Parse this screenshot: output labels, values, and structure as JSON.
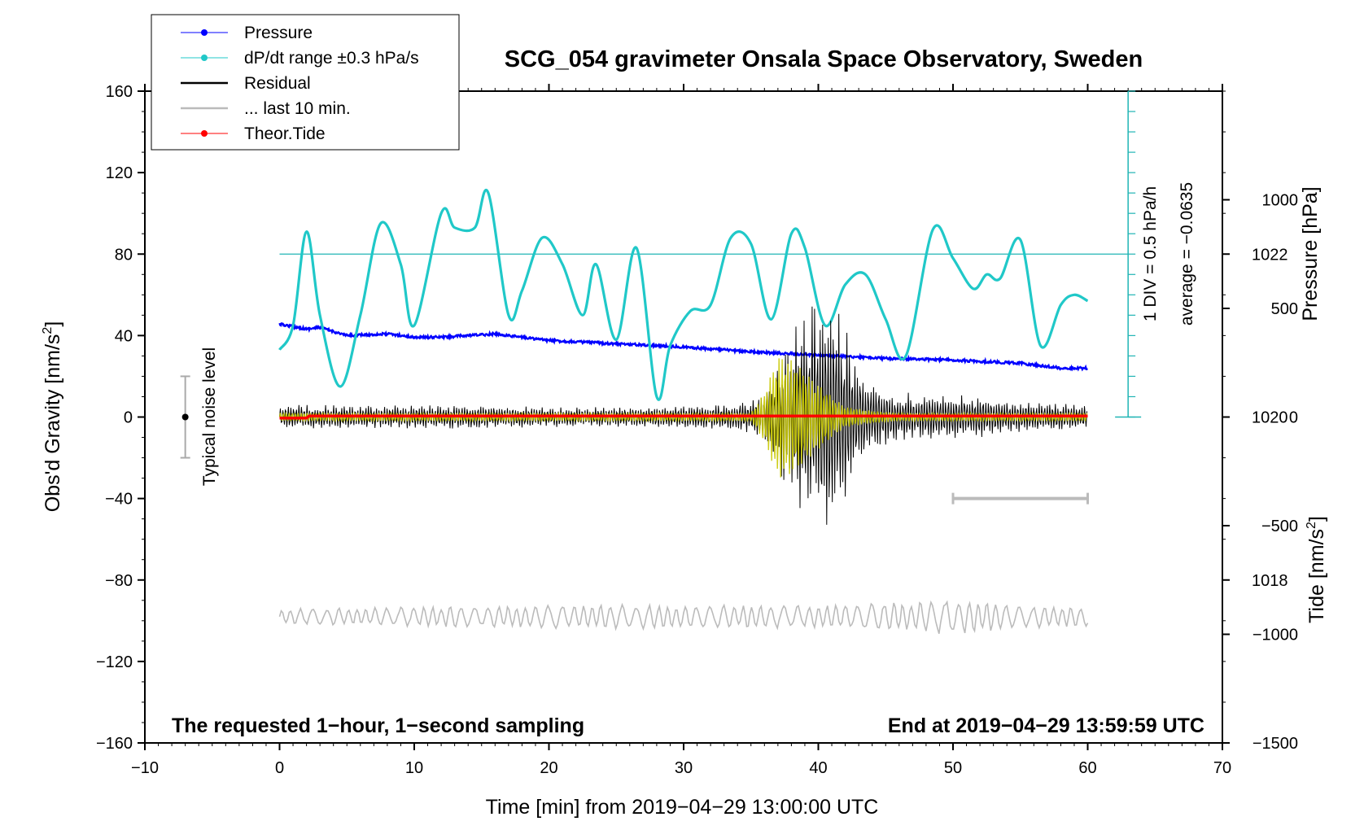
{
  "chart_data": {
    "type": "line",
    "title": "SCG_054 gravimeter Onsala Space Observatory, Sweden",
    "xlabel": "Time [min] from 2019−04−29 13:00:00 UTC",
    "xlim": [
      -10,
      70
    ],
    "x_ticks": [
      "−10",
      "0",
      "10",
      "20",
      "30",
      "40",
      "50",
      "60",
      "70"
    ],
    "left_axis": {
      "label_prefix": "Obs'd Gravity [nm/s",
      "label_sup": "2",
      "label_suffix": "]",
      "ylim": [
        -160,
        160
      ],
      "ticks": [
        "160",
        "120",
        "80",
        "40",
        "0",
        "−40",
        "−80",
        "−120",
        "−160"
      ]
    },
    "pressure_axis": {
      "label": "Pressure [hPa]",
      "ylim": [
        1016,
        1024
      ],
      "ticks": [
        "1022",
        "1020",
        "1018"
      ]
    },
    "tide_axis": {
      "label_prefix": "Tide [nm/s",
      "label_sup": "2",
      "label_suffix": "]",
      "ylim": [
        -1500,
        1500
      ],
      "ticks": [
        "1000",
        "500",
        "0",
        "−500",
        "−1000",
        "−1500"
      ]
    },
    "legend": [
      {
        "label": "Pressure",
        "color": "#0000ff",
        "marker": true
      },
      {
        "label": "dP/dt range ±0.3 hPa/s",
        "color": "#00c8c8",
        "marker": true
      },
      {
        "label": "Residual",
        "color": "#000000",
        "marker": false
      },
      {
        "label": "... last 10 min.",
        "color": "#bbbbbb",
        "marker": false
      },
      {
        "label": "Theor.Tide",
        "color": "#ff0000",
        "marker": true
      }
    ],
    "series": [
      {
        "name": "Pressure",
        "axis": "pressure",
        "color": "#0000ff",
        "x": [
          0,
          2,
          3,
          5,
          8,
          10,
          12,
          14,
          16,
          18,
          20,
          25,
          30,
          35,
          40,
          45,
          50,
          55,
          58,
          60
        ],
        "y": [
          1021.14,
          1021.08,
          1021.1,
          1021.0,
          1021.02,
          1020.98,
          1020.98,
          1021.0,
          1021.02,
          1020.98,
          1020.94,
          1020.9,
          1020.86,
          1020.8,
          1020.76,
          1020.72,
          1020.7,
          1020.66,
          1020.6,
          1020.6
        ]
      },
      {
        "name": "dP/dt",
        "axis": "left",
        "color": "#20c8c8",
        "x": [
          0,
          1,
          2,
          3,
          4.5,
          6,
          7.5,
          9,
          10,
          12,
          13,
          14.5,
          15.5,
          17,
          18,
          19.5,
          21,
          22.5,
          23.5,
          25,
          26.5,
          28,
          29,
          30.5,
          32,
          33.5,
          35,
          36.5,
          38,
          39,
          40.5,
          42,
          43.5,
          45,
          46.5,
          48.5,
          50,
          51.5,
          52.5,
          53.5,
          55,
          56.5,
          58,
          59,
          60
        ],
        "y": [
          33,
          45,
          91,
          50,
          15,
          50,
          95,
          75,
          45,
          100,
          93,
          93,
          110,
          50,
          62,
          88,
          75,
          50,
          75,
          38,
          83,
          10,
          35,
          52,
          55,
          88,
          85,
          48,
          90,
          83,
          45,
          65,
          70,
          48,
          30,
          92,
          78,
          63,
          70,
          68,
          87,
          35,
          55,
          60,
          57
        ]
      },
      {
        "name": "dP/dt average",
        "axis": "left",
        "color": "#20b4b4",
        "x": [
          0,
          63
        ],
        "y": [
          80,
          80
        ]
      },
      {
        "name": "Residual",
        "axis": "left",
        "color": "#000000",
        "envelope_x": [
          0,
          5,
          10,
          15,
          20,
          25,
          30,
          32,
          35,
          36,
          37,
          38,
          39,
          40,
          41,
          42,
          43,
          44,
          45,
          46,
          48,
          50,
          55,
          60
        ],
        "envelope_amp": [
          6,
          6,
          6,
          6,
          5,
          5,
          6,
          6,
          8,
          12,
          25,
          45,
          55,
          60,
          65,
          45,
          25,
          18,
          15,
          12,
          12,
          12,
          8,
          6
        ]
      },
      {
        "name": "Residual (filtered)",
        "axis": "left",
        "color": "#c8c800",
        "envelope_x": [
          0,
          20,
          35,
          36,
          37,
          38,
          39,
          40,
          41,
          42,
          44,
          46,
          60
        ],
        "envelope_amp": [
          2,
          2,
          2,
          12,
          30,
          28,
          22,
          16,
          10,
          5,
          3,
          2,
          2
        ]
      },
      {
        "name": "Theor.Tide",
        "axis": "tide",
        "color": "#ff0000",
        "x": [
          0,
          2,
          2.2,
          60
        ],
        "y": [
          -5,
          -5,
          5,
          5
        ]
      },
      {
        "name": "Residual last 10 min",
        "axis": "left",
        "color": "#bbbbbb",
        "baseline": -100,
        "envelope_x": [
          0,
          10,
          20,
          30,
          40,
          48,
          50,
          52,
          55,
          60
        ],
        "envelope_amp": [
          4,
          5,
          6,
          6,
          6,
          8,
          10,
          8,
          6,
          5
        ]
      }
    ],
    "dpdt_scale": {
      "label": "1 DIV = 0.5 hPa/h",
      "x": 63,
      "ylim": [
        0,
        160
      ],
      "div": 16
    },
    "average_label": "average = −0.0635",
    "noise_marker": {
      "label": "Typical noise level",
      "x": -7,
      "center": 0,
      "range": [
        -20,
        20
      ]
    },
    "scale_bar": {
      "x": [
        50,
        60
      ],
      "y": -40
    },
    "annotation_left": "The requested 1−hour, 1−second sampling",
    "annotation_right": "End at 2019−04−29 13:59:59 UTC"
  }
}
